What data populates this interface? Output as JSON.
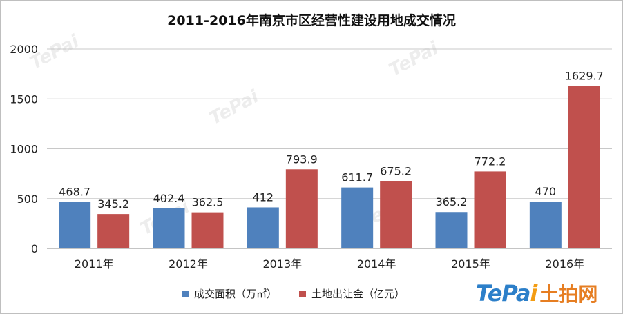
{
  "chart_data": {
    "type": "bar",
    "title": "2011-2016年南京市区经营性建设用地成交情况",
    "categories": [
      "2011年",
      "2012年",
      "2013年",
      "2014年",
      "2015年",
      "2016年"
    ],
    "series": [
      {
        "name": "成交面积（万㎡）",
        "values": [
          468.7,
          402.4,
          412,
          611.7,
          365.2,
          470
        ],
        "labels": [
          "468.7",
          "402.4",
          "412",
          "611.7",
          "365.2",
          "470"
        ],
        "color": "#4f81bd"
      },
      {
        "name": "土地出让金（亿元）",
        "values": [
          345.2,
          362.5,
          793.9,
          675.2,
          772.2,
          1629.7
        ],
        "labels": [
          "345.2",
          "362.5",
          "793.9",
          "675.2",
          "772.2",
          "1629.7"
        ],
        "color": "#c0504d"
      }
    ],
    "yticks": [
      "0",
      "500",
      "1000",
      "1500",
      "2000"
    ],
    "ylim": [
      0,
      2000
    ],
    "grid": true,
    "legend_position": "bottom"
  },
  "watermark": {
    "latin": "TePai",
    "chinese": "土拍网"
  }
}
